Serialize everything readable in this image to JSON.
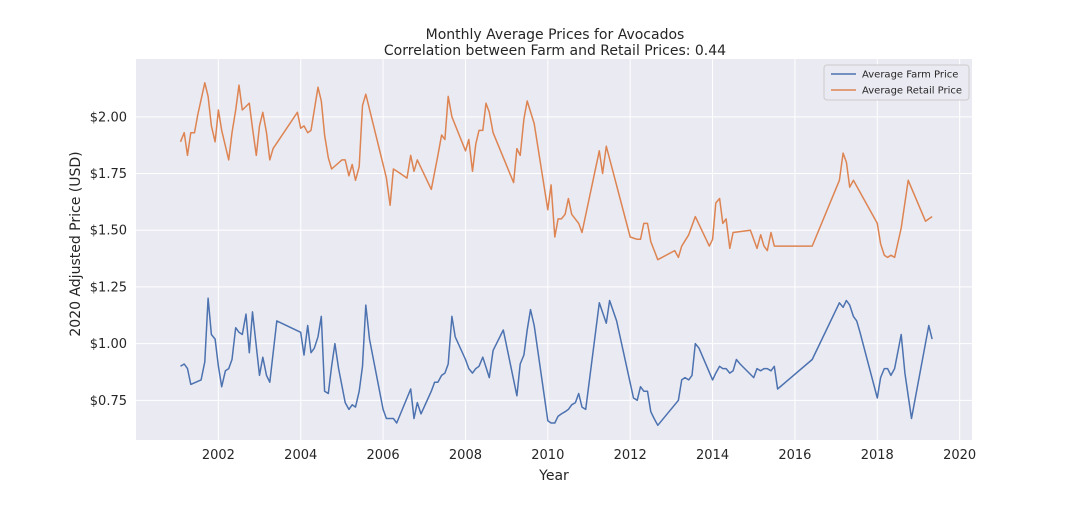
{
  "chart_data": {
    "type": "line",
    "title": "Monthly Average Prices for Avocados",
    "subtitle": "Correlation between Farm and Retail Prices: 0.44",
    "xlabel": "Year",
    "ylabel": "2020 Adjusted Price (USD)",
    "xlim": [
      2000.0,
      2020.3
    ],
    "ylim": [
      0.575,
      2.255
    ],
    "xticks": [
      2002,
      2004,
      2006,
      2008,
      2010,
      2012,
      2014,
      2016,
      2018,
      2020
    ],
    "xtick_labels": [
      "2002",
      "2004",
      "2006",
      "2008",
      "2010",
      "2012",
      "2014",
      "2016",
      "2018",
      "2020"
    ],
    "yticks": [
      0.75,
      1.0,
      1.25,
      1.5,
      1.75,
      2.0
    ],
    "ytick_labels": [
      "$0.75",
      "$1.00",
      "$1.25",
      "$1.50",
      "$1.75",
      "$2.00"
    ],
    "grid": true,
    "legend_position": "top-right",
    "background": "#eaeaf2",
    "series": [
      {
        "name": "Average Farm Price",
        "color": "#4c72b0",
        "points": [
          [
            2001.08,
            0.9
          ],
          [
            2001.17,
            0.91
          ],
          [
            2001.25,
            0.89
          ],
          [
            2001.33,
            0.82
          ],
          [
            2001.58,
            0.84
          ],
          [
            2001.67,
            0.92
          ],
          [
            2001.75,
            1.2
          ],
          [
            2001.83,
            1.04
          ],
          [
            2001.92,
            1.02
          ],
          [
            2002.0,
            0.9
          ],
          [
            2002.08,
            0.81
          ],
          [
            2002.17,
            0.88
          ],
          [
            2002.25,
            0.89
          ],
          [
            2002.33,
            0.93
          ],
          [
            2002.42,
            1.07
          ],
          [
            2002.5,
            1.05
          ],
          [
            2002.58,
            1.04
          ],
          [
            2002.67,
            1.13
          ],
          [
            2002.75,
            0.96
          ],
          [
            2002.83,
            1.14
          ],
          [
            2003.0,
            0.86
          ],
          [
            2003.08,
            0.94
          ],
          [
            2003.17,
            0.86
          ],
          [
            2003.25,
            0.83
          ],
          [
            2003.42,
            1.1
          ],
          [
            2004.0,
            1.05
          ],
          [
            2004.08,
            0.95
          ],
          [
            2004.17,
            1.08
          ],
          [
            2004.25,
            0.96
          ],
          [
            2004.33,
            0.98
          ],
          [
            2004.42,
            1.03
          ],
          [
            2004.5,
            1.12
          ],
          [
            2004.58,
            0.79
          ],
          [
            2004.67,
            0.78
          ],
          [
            2004.75,
            0.9
          ],
          [
            2004.83,
            1.0
          ],
          [
            2004.92,
            0.89
          ],
          [
            2005.08,
            0.74
          ],
          [
            2005.17,
            0.71
          ],
          [
            2005.25,
            0.73
          ],
          [
            2005.33,
            0.72
          ],
          [
            2005.42,
            0.79
          ],
          [
            2005.5,
            0.9
          ],
          [
            2005.58,
            1.17
          ],
          [
            2005.67,
            1.02
          ],
          [
            2006.0,
            0.71
          ],
          [
            2006.08,
            0.67
          ],
          [
            2006.25,
            0.67
          ],
          [
            2006.33,
            0.65
          ],
          [
            2006.67,
            0.8
          ],
          [
            2006.75,
            0.67
          ],
          [
            2006.83,
            0.74
          ],
          [
            2006.92,
            0.69
          ],
          [
            2007.17,
            0.79
          ],
          [
            2007.25,
            0.83
          ],
          [
            2007.33,
            0.83
          ],
          [
            2007.42,
            0.86
          ],
          [
            2007.5,
            0.87
          ],
          [
            2007.58,
            0.91
          ],
          [
            2007.67,
            1.12
          ],
          [
            2007.75,
            1.03
          ],
          [
            2008.0,
            0.93
          ],
          [
            2008.08,
            0.89
          ],
          [
            2008.17,
            0.87
          ],
          [
            2008.25,
            0.89
          ],
          [
            2008.33,
            0.9
          ],
          [
            2008.42,
            0.94
          ],
          [
            2008.58,
            0.85
          ],
          [
            2008.67,
            0.97
          ],
          [
            2008.92,
            1.06
          ],
          [
            2009.25,
            0.77
          ],
          [
            2009.33,
            0.91
          ],
          [
            2009.42,
            0.95
          ],
          [
            2009.5,
            1.06
          ],
          [
            2009.58,
            1.15
          ],
          [
            2009.67,
            1.08
          ],
          [
            2010.0,
            0.66
          ],
          [
            2010.08,
            0.65
          ],
          [
            2010.17,
            0.65
          ],
          [
            2010.25,
            0.68
          ],
          [
            2010.33,
            0.69
          ],
          [
            2010.42,
            0.7
          ],
          [
            2010.5,
            0.71
          ],
          [
            2010.58,
            0.73
          ],
          [
            2010.67,
            0.74
          ],
          [
            2010.75,
            0.78
          ],
          [
            2010.83,
            0.72
          ],
          [
            2010.92,
            0.71
          ],
          [
            2011.25,
            1.18
          ],
          [
            2011.42,
            1.09
          ],
          [
            2011.5,
            1.19
          ],
          [
            2011.67,
            1.1
          ],
          [
            2012.08,
            0.76
          ],
          [
            2012.17,
            0.75
          ],
          [
            2012.25,
            0.81
          ],
          [
            2012.33,
            0.79
          ],
          [
            2012.42,
            0.79
          ],
          [
            2012.5,
            0.7
          ],
          [
            2012.58,
            0.67
          ],
          [
            2012.67,
            0.64
          ],
          [
            2013.17,
            0.75
          ],
          [
            2013.25,
            0.84
          ],
          [
            2013.33,
            0.85
          ],
          [
            2013.42,
            0.84
          ],
          [
            2013.5,
            0.86
          ],
          [
            2013.58,
            1.0
          ],
          [
            2013.67,
            0.98
          ],
          [
            2014.0,
            0.84
          ],
          [
            2014.08,
            0.87
          ],
          [
            2014.17,
            0.9
          ],
          [
            2014.25,
            0.89
          ],
          [
            2014.33,
            0.89
          ],
          [
            2014.42,
            0.87
          ],
          [
            2014.5,
            0.88
          ],
          [
            2014.58,
            0.93
          ],
          [
            2014.67,
            0.91
          ],
          [
            2015.0,
            0.85
          ],
          [
            2015.08,
            0.89
          ],
          [
            2015.17,
            0.88
          ],
          [
            2015.25,
            0.89
          ],
          [
            2015.33,
            0.89
          ],
          [
            2015.42,
            0.88
          ],
          [
            2015.5,
            0.9
          ],
          [
            2015.58,
            0.8
          ],
          [
            2016.42,
            0.93
          ],
          [
            2017.08,
            1.18
          ],
          [
            2017.17,
            1.16
          ],
          [
            2017.25,
            1.19
          ],
          [
            2017.33,
            1.17
          ],
          [
            2017.42,
            1.12
          ],
          [
            2017.5,
            1.1
          ],
          [
            2017.58,
            1.05
          ],
          [
            2018.0,
            0.76
          ],
          [
            2018.08,
            0.85
          ],
          [
            2018.17,
            0.89
          ],
          [
            2018.25,
            0.89
          ],
          [
            2018.33,
            0.86
          ],
          [
            2018.42,
            0.89
          ],
          [
            2018.58,
            1.04
          ],
          [
            2018.67,
            0.87
          ],
          [
            2018.83,
            0.67
          ],
          [
            2019.25,
            1.08
          ],
          [
            2019.33,
            1.02
          ]
        ]
      },
      {
        "name": "Average Retail Price",
        "color": "#dd8452",
        "points": [
          [
            2001.08,
            1.89
          ],
          [
            2001.17,
            1.93
          ],
          [
            2001.25,
            1.83
          ],
          [
            2001.33,
            1.93
          ],
          [
            2001.42,
            1.93
          ],
          [
            2001.5,
            2.01
          ],
          [
            2001.67,
            2.15
          ],
          [
            2001.75,
            2.09
          ],
          [
            2001.83,
            1.96
          ],
          [
            2001.92,
            1.89
          ],
          [
            2002.0,
            2.03
          ],
          [
            2002.08,
            1.94
          ],
          [
            2002.25,
            1.81
          ],
          [
            2002.33,
            1.93
          ],
          [
            2002.42,
            2.03
          ],
          [
            2002.5,
            2.14
          ],
          [
            2002.58,
            2.03
          ],
          [
            2002.75,
            2.06
          ],
          [
            2002.83,
            1.95
          ],
          [
            2002.92,
            1.83
          ],
          [
            2003.0,
            1.96
          ],
          [
            2003.08,
            2.02
          ],
          [
            2003.17,
            1.93
          ],
          [
            2003.25,
            1.81
          ],
          [
            2003.33,
            1.86
          ],
          [
            2003.92,
            2.02
          ],
          [
            2004.0,
            1.95
          ],
          [
            2004.08,
            1.96
          ],
          [
            2004.17,
            1.93
          ],
          [
            2004.25,
            1.94
          ],
          [
            2004.33,
            2.03
          ],
          [
            2004.42,
            2.13
          ],
          [
            2004.5,
            2.07
          ],
          [
            2004.58,
            1.92
          ],
          [
            2004.67,
            1.82
          ],
          [
            2004.75,
            1.77
          ],
          [
            2005.0,
            1.81
          ],
          [
            2005.08,
            1.81
          ],
          [
            2005.17,
            1.74
          ],
          [
            2005.25,
            1.79
          ],
          [
            2005.33,
            1.72
          ],
          [
            2005.42,
            1.78
          ],
          [
            2005.5,
            2.05
          ],
          [
            2005.58,
            2.1
          ],
          [
            2006.0,
            1.79
          ],
          [
            2006.08,
            1.73
          ],
          [
            2006.17,
            1.61
          ],
          [
            2006.25,
            1.77
          ],
          [
            2006.42,
            1.75
          ],
          [
            2006.58,
            1.73
          ],
          [
            2006.67,
            1.83
          ],
          [
            2006.75,
            1.76
          ],
          [
            2006.83,
            1.81
          ],
          [
            2007.17,
            1.68
          ],
          [
            2007.33,
            1.83
          ],
          [
            2007.42,
            1.92
          ],
          [
            2007.5,
            1.9
          ],
          [
            2007.58,
            2.09
          ],
          [
            2007.67,
            2.0
          ],
          [
            2008.0,
            1.85
          ],
          [
            2008.08,
            1.9
          ],
          [
            2008.17,
            1.76
          ],
          [
            2008.25,
            1.88
          ],
          [
            2008.33,
            1.94
          ],
          [
            2008.42,
            1.94
          ],
          [
            2008.5,
            2.06
          ],
          [
            2008.58,
            2.02
          ],
          [
            2008.67,
            1.93
          ],
          [
            2009.17,
            1.71
          ],
          [
            2009.25,
            1.86
          ],
          [
            2009.33,
            1.83
          ],
          [
            2009.42,
            1.99
          ],
          [
            2009.5,
            2.07
          ],
          [
            2009.67,
            1.97
          ],
          [
            2010.0,
            1.59
          ],
          [
            2010.08,
            1.7
          ],
          [
            2010.17,
            1.47
          ],
          [
            2010.25,
            1.55
          ],
          [
            2010.33,
            1.55
          ],
          [
            2010.42,
            1.57
          ],
          [
            2010.5,
            1.64
          ],
          [
            2010.58,
            1.57
          ],
          [
            2010.75,
            1.53
          ],
          [
            2010.83,
            1.49
          ],
          [
            2011.25,
            1.85
          ],
          [
            2011.33,
            1.75
          ],
          [
            2011.42,
            1.87
          ],
          [
            2012.0,
            1.47
          ],
          [
            2012.17,
            1.46
          ],
          [
            2012.25,
            1.46
          ],
          [
            2012.33,
            1.53
          ],
          [
            2012.42,
            1.53
          ],
          [
            2012.5,
            1.45
          ],
          [
            2012.67,
            1.37
          ],
          [
            2013.08,
            1.41
          ],
          [
            2013.17,
            1.38
          ],
          [
            2013.25,
            1.43
          ],
          [
            2013.42,
            1.48
          ],
          [
            2013.58,
            1.56
          ],
          [
            2013.92,
            1.43
          ],
          [
            2014.0,
            1.46
          ],
          [
            2014.08,
            1.62
          ],
          [
            2014.17,
            1.64
          ],
          [
            2014.25,
            1.53
          ],
          [
            2014.33,
            1.55
          ],
          [
            2014.42,
            1.42
          ],
          [
            2014.5,
            1.49
          ],
          [
            2014.92,
            1.5
          ],
          [
            2015.08,
            1.42
          ],
          [
            2015.17,
            1.48
          ],
          [
            2015.25,
            1.43
          ],
          [
            2015.33,
            1.41
          ],
          [
            2015.42,
            1.49
          ],
          [
            2015.5,
            1.43
          ],
          [
            2016.42,
            1.43
          ],
          [
            2017.08,
            1.72
          ],
          [
            2017.17,
            1.84
          ],
          [
            2017.25,
            1.8
          ],
          [
            2017.33,
            1.69
          ],
          [
            2017.42,
            1.72
          ],
          [
            2018.0,
            1.53
          ],
          [
            2018.08,
            1.44
          ],
          [
            2018.17,
            1.39
          ],
          [
            2018.25,
            1.38
          ],
          [
            2018.33,
            1.39
          ],
          [
            2018.42,
            1.38
          ],
          [
            2018.58,
            1.51
          ],
          [
            2018.75,
            1.72
          ],
          [
            2019.17,
            1.54
          ],
          [
            2019.25,
            1.55
          ],
          [
            2019.33,
            1.56
          ]
        ]
      }
    ]
  }
}
